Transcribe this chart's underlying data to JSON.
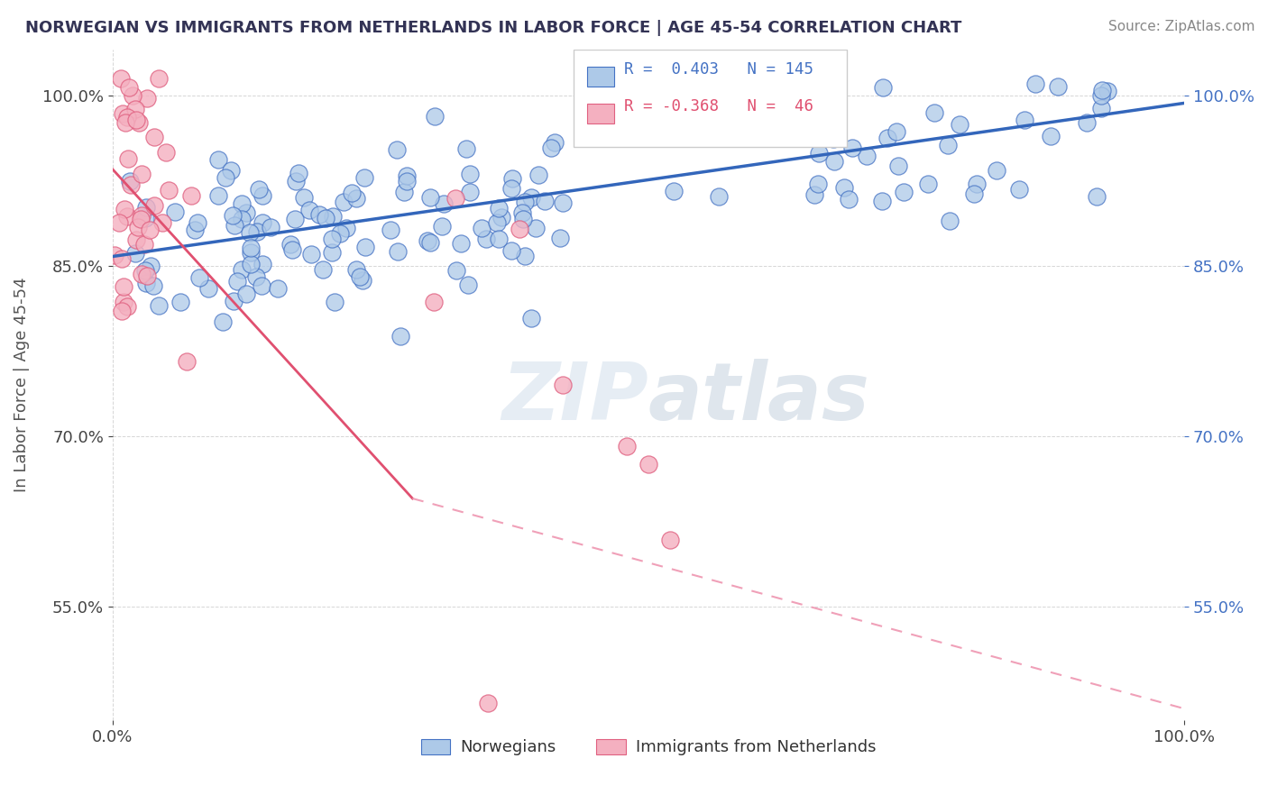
{
  "title": "NORWEGIAN VS IMMIGRANTS FROM NETHERLANDS IN LABOR FORCE | AGE 45-54 CORRELATION CHART",
  "source": "Source: ZipAtlas.com",
  "ylabel": "In Labor Force | Age 45-54",
  "xlim": [
    0.0,
    1.0
  ],
  "ylim": [
    0.45,
    1.04
  ],
  "yticks": [
    0.55,
    0.7,
    0.85,
    1.0
  ],
  "ytick_labels": [
    "55.0%",
    "70.0%",
    "85.0%",
    "100.0%"
  ],
  "xticks": [
    0.0,
    1.0
  ],
  "xtick_labels": [
    "0.0%",
    "100.0%"
  ],
  "norwegian_color": "#adc9e8",
  "norwegian_edge_color": "#4472c4",
  "immigrant_color": "#f4b0c0",
  "immigrant_edge_color": "#e06080",
  "norwegian_line_color": "#3366bb",
  "immigrant_line_color": "#e05070",
  "immigrant_dash_color": "#f0a0b8",
  "watermark": "ZIPatlas",
  "background_color": "#ffffff",
  "R_norwegian": 0.403,
  "N_norwegian": 145,
  "R_immigrant": -0.368,
  "N_immigrant": 46,
  "nor_trend_x0": 0.0,
  "nor_trend_y0": 0.858,
  "nor_trend_x1": 1.0,
  "nor_trend_y1": 0.993,
  "imm_trend_x0": 0.0,
  "imm_trend_y0": 0.935,
  "imm_trend_x1_solid": 0.28,
  "imm_trend_y1_solid": 0.645,
  "imm_trend_x1_dash": 1.0,
  "imm_trend_y1_dash": 0.46
}
